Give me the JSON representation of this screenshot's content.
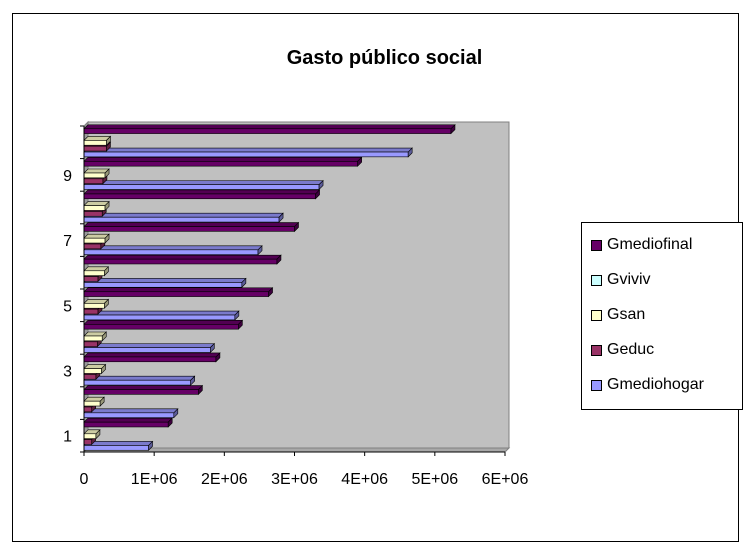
{
  "chart_data": {
    "type": "bar",
    "orientation": "horizontal",
    "title": "Gasto público social",
    "categories": [
      "1",
      "2",
      "3",
      "4",
      "5",
      "6",
      "7",
      "8",
      "9",
      "10"
    ],
    "y_tick_labels": [
      "1",
      "3",
      "5",
      "7",
      "9"
    ],
    "x_tick_labels": [
      "0",
      "1E+06",
      "2E+06",
      "3E+06",
      "4E+06",
      "5E+06",
      "6E+06"
    ],
    "xlim": [
      0,
      6000000
    ],
    "grid": false,
    "legend_position": "right",
    "series": [
      {
        "name": "Gmediohogar",
        "color": "#9999ff",
        "values": [
          920000,
          1280000,
          1520000,
          1800000,
          2150000,
          2250000,
          2480000,
          2780000,
          3350000,
          4620000
        ]
      },
      {
        "name": "Geduc",
        "color": "#993366",
        "values": [
          110000,
          110000,
          170000,
          190000,
          200000,
          200000,
          240000,
          260000,
          270000,
          320000
        ]
      },
      {
        "name": "Gsan",
        "color": "#ffffcc",
        "values": [
          170000,
          230000,
          250000,
          260000,
          290000,
          290000,
          300000,
          300000,
          300000,
          320000
        ]
      },
      {
        "name": "Gviviv",
        "color": "#ccffff",
        "values": [
          0,
          0,
          0,
          0,
          0,
          0,
          0,
          0,
          0,
          0
        ]
      },
      {
        "name": "Gmediofinal",
        "color": "#660066",
        "values": [
          1200000,
          1630000,
          1880000,
          2200000,
          2630000,
          2750000,
          3000000,
          3300000,
          3900000,
          5230000
        ]
      }
    ],
    "legend_order": [
      "Gmediofinal",
      "Gviviv",
      "Gsan",
      "Geduc",
      "Gmediohogar"
    ]
  }
}
